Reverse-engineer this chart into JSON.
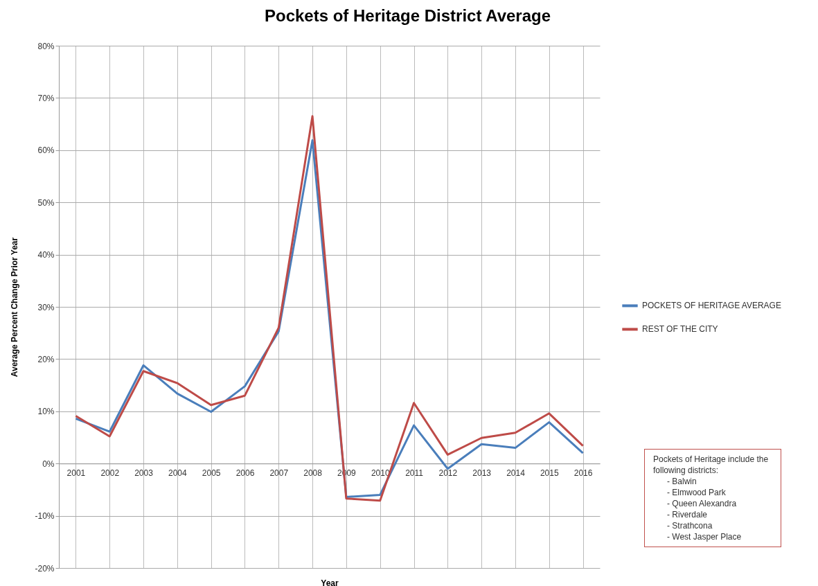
{
  "chart_data": {
    "type": "line",
    "title": "Pockets of Heritage District Average",
    "xlabel": "Year",
    "ylabel": "Average Percent Change Prior Year",
    "categories": [
      "2001",
      "2002",
      "2003",
      "2004",
      "2005",
      "2006",
      "2007",
      "2008",
      "2009",
      "2010",
      "2011",
      "2012",
      "2013",
      "2014",
      "2015",
      "2016"
    ],
    "series": [
      {
        "name": "POCKETS OF HERITAGE AVERAGE",
        "color": "#4a7ebb",
        "values": [
          8.6,
          6.1,
          18.8,
          13.4,
          9.9,
          14.8,
          25.3,
          61.9,
          -6.4,
          -6.0,
          7.3,
          -1.0,
          3.7,
          3.0,
          7.9,
          2.0
        ]
      },
      {
        "name": "REST OF THE CITY",
        "color": "#be4b48",
        "values": [
          9.1,
          5.2,
          17.7,
          15.4,
          11.2,
          13.0,
          26.0,
          66.5,
          -6.7,
          -7.1,
          11.6,
          1.7,
          4.9,
          5.9,
          9.6,
          3.4
        ]
      }
    ],
    "ylim": [
      -20,
      80
    ],
    "yticks": [
      {
        "value": -20,
        "label": "-20%"
      },
      {
        "value": -10,
        "label": "-10%"
      },
      {
        "value": 0,
        "label": "0%"
      },
      {
        "value": 10,
        "label": "10%"
      },
      {
        "value": 20,
        "label": "20%"
      },
      {
        "value": 30,
        "label": "30%"
      },
      {
        "value": 40,
        "label": "40%"
      },
      {
        "value": 50,
        "label": "50%"
      },
      {
        "value": 60,
        "label": "60%"
      },
      {
        "value": 70,
        "label": "70%"
      },
      {
        "value": 80,
        "label": "80%"
      }
    ],
    "grid": true,
    "legend": "right",
    "line_style": "solid",
    "marker": "none",
    "annotations": [
      "Pockets of Heritage include the following districts:",
      "- Balwin",
      "- Elmwood Park",
      "- Queen Alexandra",
      "- Riverdale",
      "- Strathcona",
      "- West Jasper Place"
    ]
  }
}
